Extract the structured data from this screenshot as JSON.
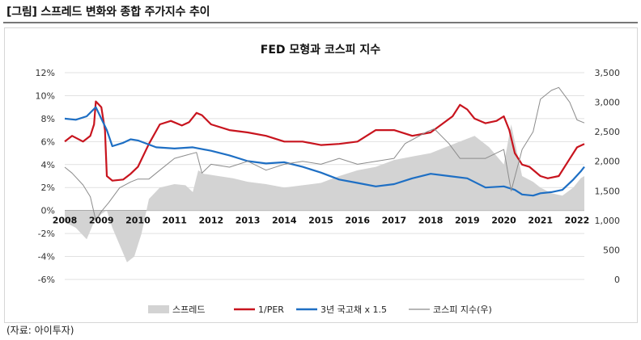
{
  "header": {
    "title": "[그림] 스프레드 변화와 종합 주가지수 추이"
  },
  "source": "(자료: 아이투자)",
  "chart_data": {
    "type": "line",
    "title": "FED 모형과 코스피 지수",
    "x_tick_labels": [
      "2008",
      "2009",
      "2010",
      "2011",
      "2012",
      "2013",
      "2014",
      "2015",
      "2016",
      "2017",
      "2018",
      "2019",
      "2020",
      "2021",
      "2022"
    ],
    "x_range": [
      2008.0,
      2022.2
    ],
    "y_left": {
      "ticks": [
        "12%",
        "10%",
        "8%",
        "6%",
        "4%",
        "2%",
        "0%",
        "-2%",
        "-4%",
        "-6%"
      ],
      "range": [
        -6,
        12
      ]
    },
    "y_right": {
      "ticks": [
        "3,500",
        "3,000",
        "2,500",
        "2,000",
        "1,500",
        "1,000",
        "500",
        "0"
      ],
      "range": [
        0,
        3500
      ]
    },
    "grid": true,
    "legend_position": "bottom",
    "series": [
      {
        "name": "스프레드",
        "kind": "area",
        "axis": "left",
        "color": "#d3d3d3",
        "x": [
          2008.0,
          2008.3,
          2008.6,
          2008.8,
          2009.0,
          2009.15,
          2009.3,
          2009.5,
          2009.7,
          2009.9,
          2010.1,
          2010.3,
          2010.6,
          2011.0,
          2011.3,
          2011.5,
          2011.65,
          2011.8,
          2012.2,
          2012.6,
          2013.0,
          2013.5,
          2014.0,
          2014.5,
          2015.0,
          2015.5,
          2016.0,
          2016.5,
          2017.0,
          2017.5,
          2018.0,
          2018.4,
          2018.8,
          2019.2,
          2019.6,
          2020.0,
          2020.2,
          2020.5,
          2020.8,
          2021.0,
          2021.3,
          2021.6,
          2021.9,
          2022.1,
          2022.2
        ],
        "values": [
          -1.0,
          -1.5,
          -2.5,
          -1.0,
          -0.3,
          0.0,
          -1.5,
          -3.0,
          -4.5,
          -4.0,
          -2.0,
          1.0,
          2.0,
          2.3,
          2.2,
          1.6,
          3.5,
          3.2,
          3.0,
          2.8,
          2.5,
          2.3,
          2.0,
          2.2,
          2.4,
          3.0,
          3.5,
          3.8,
          4.4,
          4.7,
          5.0,
          5.5,
          6.0,
          6.5,
          5.5,
          4.0,
          7.5,
          3.0,
          2.5,
          2.0,
          1.5,
          1.3,
          2.0,
          2.8,
          3.0
        ]
      },
      {
        "name": "1/PER",
        "kind": "line",
        "axis": "left",
        "color": "#c8141e",
        "x": [
          2008.0,
          2008.2,
          2008.5,
          2008.7,
          2008.8,
          2008.85,
          2009.0,
          2009.1,
          2009.15,
          2009.3,
          2009.6,
          2009.8,
          2010.0,
          2010.3,
          2010.6,
          2010.9,
          2011.2,
          2011.4,
          2011.6,
          2011.75,
          2012.0,
          2012.5,
          2013.0,
          2013.5,
          2014.0,
          2014.5,
          2015.0,
          2015.5,
          2016.0,
          2016.5,
          2017.0,
          2017.5,
          2018.0,
          2018.3,
          2018.6,
          2018.8,
          2019.0,
          2019.2,
          2019.5,
          2019.8,
          2020.0,
          2020.15,
          2020.3,
          2020.5,
          2020.7,
          2021.0,
          2021.2,
          2021.5,
          2021.8,
          2022.0,
          2022.2
        ],
        "values": [
          6.0,
          6.5,
          6.0,
          6.5,
          7.5,
          9.5,
          9.0,
          7.0,
          3.0,
          2.6,
          2.7,
          3.2,
          3.8,
          5.8,
          7.5,
          7.8,
          7.4,
          7.7,
          8.5,
          8.3,
          7.5,
          7.0,
          6.8,
          6.5,
          6.0,
          6.0,
          5.7,
          5.8,
          6.0,
          7.0,
          7.0,
          6.5,
          6.8,
          7.5,
          8.2,
          9.2,
          8.8,
          8.0,
          7.6,
          7.8,
          8.2,
          7.0,
          5.0,
          4.0,
          3.8,
          3.0,
          2.8,
          3.0,
          4.5,
          5.5,
          5.8
        ]
      },
      {
        "name": "3년 국고채 x 1.5",
        "kind": "line",
        "axis": "left",
        "color": "#1e6fc4",
        "x": [
          2008.0,
          2008.3,
          2008.6,
          2008.85,
          2009.0,
          2009.15,
          2009.3,
          2009.6,
          2009.8,
          2010.0,
          2010.5,
          2011.0,
          2011.5,
          2012.0,
          2012.5,
          2013.0,
          2013.5,
          2014.0,
          2014.5,
          2015.0,
          2015.5,
          2016.0,
          2016.5,
          2017.0,
          2017.5,
          2018.0,
          2018.5,
          2019.0,
          2019.5,
          2020.0,
          2020.3,
          2020.5,
          2020.8,
          2021.0,
          2021.3,
          2021.6,
          2021.9,
          2022.1,
          2022.2
        ],
        "values": [
          8.0,
          7.9,
          8.2,
          9.0,
          8.0,
          7.0,
          5.6,
          5.9,
          6.2,
          6.1,
          5.5,
          5.4,
          5.5,
          5.2,
          4.8,
          4.3,
          4.1,
          4.2,
          3.8,
          3.3,
          2.7,
          2.4,
          2.1,
          2.3,
          2.8,
          3.2,
          3.0,
          2.8,
          2.0,
          2.1,
          1.8,
          1.4,
          1.3,
          1.5,
          1.6,
          1.8,
          2.7,
          3.4,
          3.8
        ]
      },
      {
        "name": "코스피 지수(우)",
        "kind": "line",
        "axis": "right",
        "color": "#8c8c8c",
        "x": [
          2008.0,
          2008.2,
          2008.5,
          2008.7,
          2008.85,
          2009.0,
          2009.2,
          2009.5,
          2009.8,
          2010.0,
          2010.3,
          2010.6,
          2011.0,
          2011.3,
          2011.6,
          2011.75,
          2012.0,
          2012.5,
          2013.0,
          2013.5,
          2014.0,
          2014.5,
          2015.0,
          2015.5,
          2016.0,
          2016.5,
          2017.0,
          2017.3,
          2017.6,
          2017.9,
          2018.1,
          2018.5,
          2018.8,
          2019.0,
          2019.5,
          2020.0,
          2020.2,
          2020.5,
          2020.8,
          2021.0,
          2021.3,
          2021.5,
          2021.8,
          2022.0,
          2022.2
        ],
        "values": [
          1900,
          1800,
          1600,
          1400,
          1000,
          1150,
          1300,
          1550,
          1650,
          1700,
          1700,
          1850,
          2050,
          2100,
          2150,
          1800,
          1950,
          1900,
          2000,
          1850,
          1950,
          2000,
          1950,
          2050,
          1950,
          2000,
          2050,
          2300,
          2400,
          2500,
          2550,
          2300,
          2050,
          2050,
          2050,
          2200,
          1500,
          2200,
          2500,
          3050,
          3200,
          3250,
          3000,
          2700,
          2650
        ]
      }
    ]
  }
}
